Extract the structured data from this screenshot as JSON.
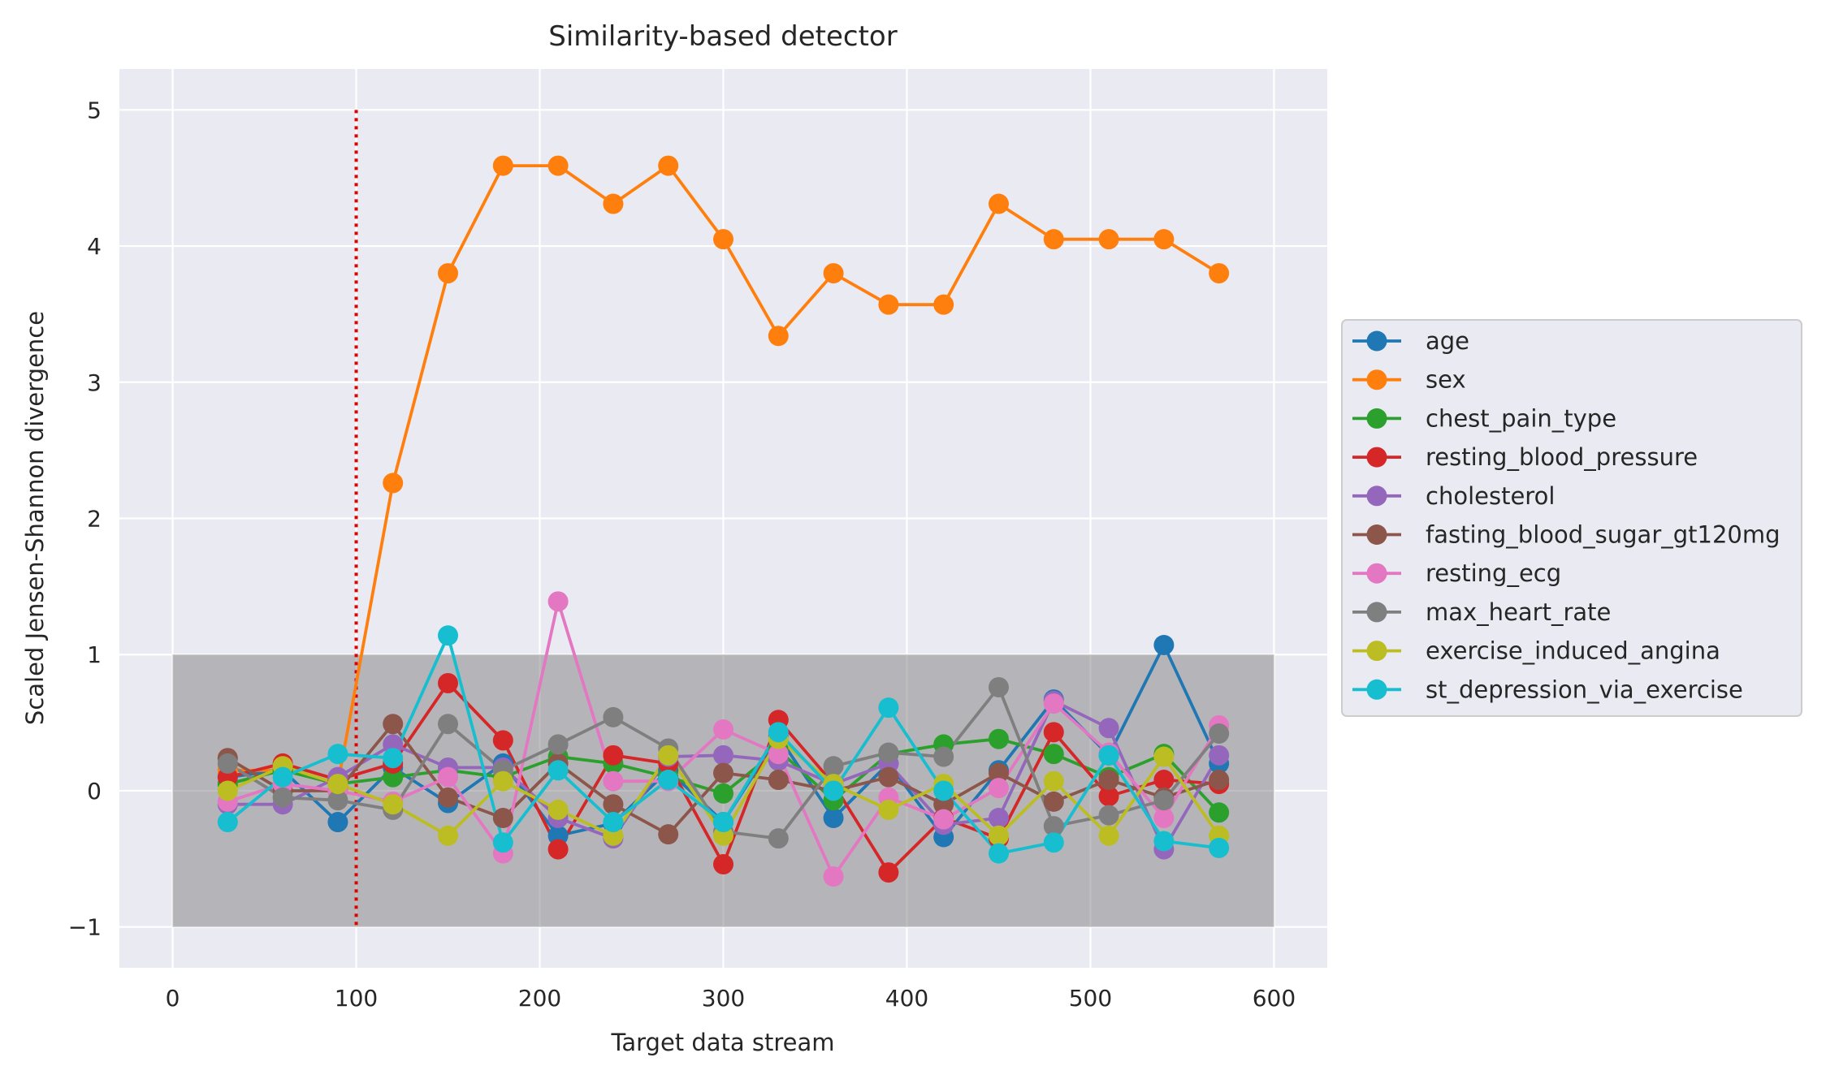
{
  "chart_data": {
    "type": "line",
    "title": "Similarity-based detector",
    "xlabel": "Target data stream",
    "ylabel": "Scaled Jensen-Shannon divergence",
    "xlim": [
      -29,
      629
    ],
    "ylim": [
      -1.3,
      5.3
    ],
    "xticks": [
      0,
      100,
      200,
      300,
      400,
      500,
      600
    ],
    "yticks": [
      -1,
      0,
      1,
      2,
      3,
      4,
      5
    ],
    "grid": true,
    "legend_position": "right outside",
    "band": {
      "x": [
        0,
        600
      ],
      "y": [
        -1,
        1
      ],
      "color": "#808080"
    },
    "vline": {
      "x": 100,
      "y": [
        -1,
        5
      ],
      "color": "#e00000",
      "style": "dotted"
    },
    "x": [
      30,
      60,
      90,
      120,
      150,
      180,
      210,
      240,
      270,
      300,
      330,
      360,
      390,
      420,
      450,
      480,
      510,
      540,
      570
    ],
    "series": [
      {
        "name": "age",
        "color": "#1f77b4",
        "values": [
          0.1,
          0.15,
          -0.23,
          0.17,
          -0.09,
          0.2,
          -0.33,
          -0.24,
          0.15,
          -0.23,
          0.4,
          -0.2,
          0.2,
          -0.34,
          0.15,
          0.67,
          0.26,
          1.07,
          0.2
        ]
      },
      {
        "name": "sex",
        "color": "#ff7f0e",
        "values": [
          0.15,
          0.15,
          0.05,
          2.26,
          3.8,
          4.59,
          4.59,
          4.31,
          4.59,
          4.05,
          3.34,
          3.8,
          3.57,
          3.57,
          4.31,
          4.05,
          4.05,
          4.05,
          3.8
        ]
      },
      {
        "name": "chest_pain_type",
        "color": "#2ca02c",
        "values": [
          0.05,
          0.15,
          0.05,
          0.1,
          0.15,
          0.1,
          0.25,
          0.2,
          0.1,
          -0.02,
          0.3,
          -0.07,
          0.27,
          0.34,
          0.38,
          0.27,
          0.1,
          0.27,
          -0.16
        ]
      },
      {
        "name": "resting_blood_pressure",
        "color": "#d62728",
        "values": [
          0.1,
          0.2,
          0.08,
          0.2,
          0.79,
          0.37,
          -0.43,
          0.26,
          0.2,
          -0.54,
          0.52,
          0.05,
          -0.6,
          -0.2,
          -0.35,
          0.43,
          -0.04,
          0.08,
          0.05
        ]
      },
      {
        "name": "cholesterol",
        "color": "#9467bd",
        "values": [
          -0.1,
          -0.1,
          0.1,
          0.34,
          0.17,
          0.17,
          -0.2,
          -0.35,
          0.25,
          0.26,
          0.22,
          0.05,
          0.2,
          -0.25,
          -0.2,
          0.66,
          0.46,
          -0.43,
          0.26
        ]
      },
      {
        "name": "fasting_blood_sugar_gt120mg",
        "color": "#8c564b",
        "values": [
          0.24,
          0.0,
          0.0,
          0.49,
          -0.05,
          -0.2,
          0.2,
          -0.1,
          -0.32,
          0.13,
          0.08,
          0.0,
          0.1,
          -0.1,
          0.13,
          -0.08,
          0.08,
          -0.05,
          0.08
        ]
      },
      {
        "name": "resting_ecg",
        "color": "#e377c2",
        "values": [
          -0.08,
          0.05,
          0.0,
          -0.08,
          0.1,
          -0.46,
          1.39,
          0.07,
          0.07,
          0.45,
          0.27,
          -0.63,
          -0.05,
          -0.21,
          0.02,
          0.64,
          0.28,
          -0.2,
          0.48
        ]
      },
      {
        "name": "max_heart_rate",
        "color": "#7f7f7f",
        "values": [
          0.2,
          -0.05,
          -0.07,
          -0.14,
          0.49,
          0.15,
          0.34,
          0.54,
          0.31,
          -0.3,
          -0.35,
          0.18,
          0.28,
          0.25,
          0.76,
          -0.26,
          -0.18,
          -0.07,
          0.42
        ]
      },
      {
        "name": "exercise_induced_angina",
        "color": "#bcbd22",
        "values": [
          0.0,
          0.18,
          0.05,
          -0.1,
          -0.33,
          0.07,
          -0.14,
          -0.33,
          0.26,
          -0.33,
          0.38,
          0.05,
          -0.14,
          0.05,
          -0.33,
          0.07,
          -0.33,
          0.25,
          -0.33
        ]
      },
      {
        "name": "st_depression_via_exercise",
        "color": "#17becf",
        "values": [
          -0.23,
          0.1,
          0.27,
          0.24,
          1.14,
          -0.38,
          0.15,
          -0.23,
          0.08,
          -0.23,
          0.43,
          0.0,
          0.61,
          0.0,
          -0.46,
          -0.38,
          0.26,
          -0.37,
          -0.42
        ]
      }
    ]
  }
}
